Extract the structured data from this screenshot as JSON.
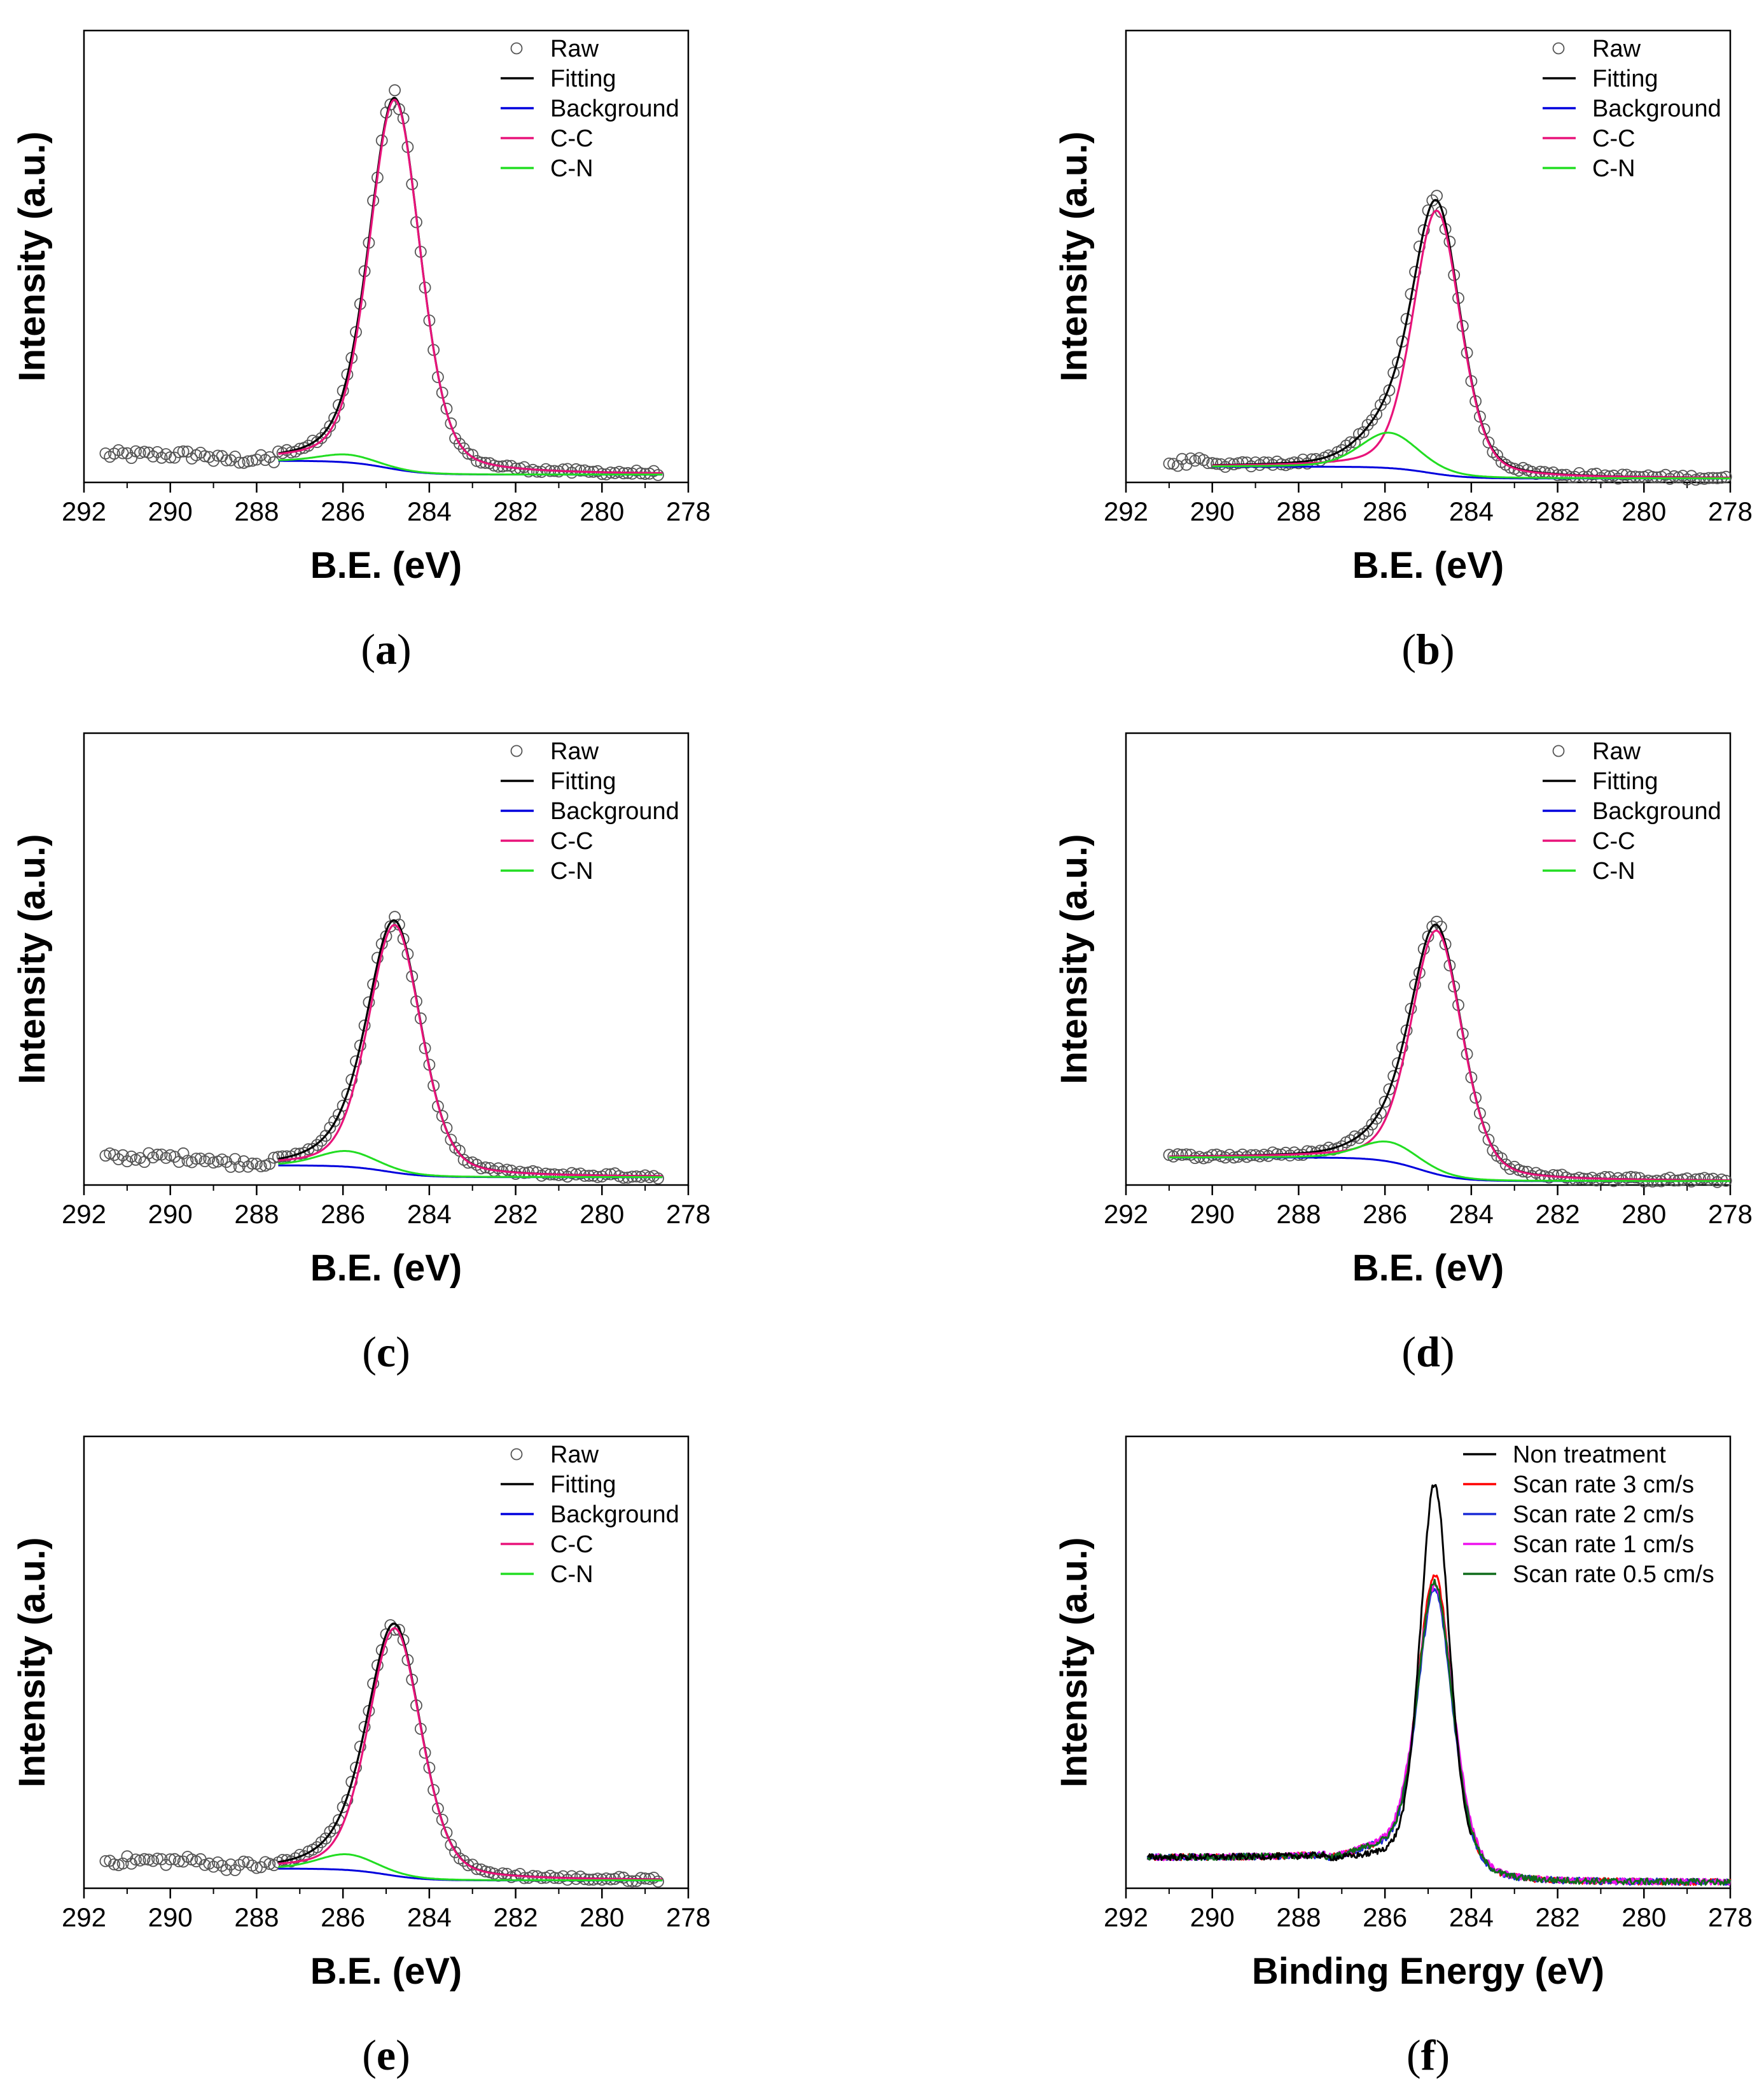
{
  "figure": {
    "panels": [
      {
        "caption": "a"
      },
      {
        "caption": "b"
      },
      {
        "caption": "c"
      },
      {
        "caption": "d"
      },
      {
        "caption": "e"
      },
      {
        "caption": "f"
      }
    ]
  },
  "colors": {
    "raw": "#555555",
    "fitting": "#000000",
    "background": "#0000dd",
    "cc": "#e8137a",
    "cn": "#22dd22",
    "non_treatment": "#000000",
    "scan3": "#ff0000",
    "scan2": "#1a2bd6",
    "scan1": "#ee11ee",
    "scan05": "#0f6b1a"
  },
  "chart_data": [
    {
      "panel": "a",
      "type": "scatter",
      "xlabel": "B.E. (eV)",
      "ylabel": "Intensity (a.u.)",
      "xlim": [
        292,
        278
      ],
      "xticks": [
        "292",
        "290",
        "288",
        "286",
        "284",
        "282",
        "280",
        "278"
      ],
      "ylim": [
        0,
        1.15
      ],
      "legend": [
        "Raw",
        "Fitting",
        "Background",
        "C-C",
        "C-N"
      ],
      "legend_position": "top-right",
      "raw_range": [
        291.5,
        278.6
      ],
      "fit_range": [
        287.5,
        278.6
      ],
      "peaks": {
        "cc": {
          "center": 284.8,
          "height": 0.94,
          "fwhm": 1.4
        },
        "cn": {
          "center": 285.9,
          "height": 0.02,
          "fwhm": 1.5
        }
      },
      "background": {
        "high": 0.055,
        "low": 0.02,
        "step_center": 285.0
      },
      "raw_plateau": 0.07
    },
    {
      "panel": "b",
      "type": "scatter",
      "xlabel": "B.E. (eV)",
      "ylabel": "Intensity (a.u.)",
      "xlim": [
        292,
        278
      ],
      "xticks": [
        "292",
        "290",
        "288",
        "286",
        "284",
        "282",
        "280",
        "278"
      ],
      "ylim": [
        0,
        1.15
      ],
      "legend": [
        "Raw",
        "Fitting",
        "Background",
        "C-C",
        "C-N"
      ],
      "legend_position": "top-right",
      "raw_range": [
        291.0,
        278.0
      ],
      "fit_range": [
        290.0,
        278.0
      ],
      "peaks": {
        "cc": {
          "center": 284.8,
          "height": 0.67,
          "fwhm": 1.3
        },
        "cn": {
          "center": 285.9,
          "height": 0.09,
          "fwhm": 1.6
        }
      },
      "background": {
        "high": 0.04,
        "low": 0.01,
        "step_center": 285.0
      },
      "raw_plateau": 0.05
    },
    {
      "panel": "c",
      "type": "scatter",
      "xlabel": "B.E. (eV)",
      "ylabel": "Intensity (a.u.)",
      "xlim": [
        292,
        278
      ],
      "xticks": [
        "292",
        "290",
        "288",
        "286",
        "284",
        "282",
        "280",
        "278"
      ],
      "ylim": [
        0,
        1.15
      ],
      "legend": [
        "Raw",
        "Fitting",
        "Background",
        "C-C",
        "C-N"
      ],
      "legend_position": "top-right",
      "raw_range": [
        291.5,
        278.6
      ],
      "fit_range": [
        287.5,
        278.6
      ],
      "peaks": {
        "cc": {
          "center": 284.8,
          "height": 0.63,
          "fwhm": 1.45
        },
        "cn": {
          "center": 285.9,
          "height": 0.04,
          "fwhm": 1.6
        }
      },
      "background": {
        "high": 0.05,
        "low": 0.02,
        "step_center": 285.0
      },
      "raw_plateau": 0.07
    },
    {
      "panel": "d",
      "type": "scatter",
      "xlabel": "B.E. (eV)",
      "ylabel": "Intensity (a.u.)",
      "xlim": [
        292,
        278
      ],
      "xticks": [
        "292",
        "290",
        "288",
        "286",
        "284",
        "282",
        "280",
        "278"
      ],
      "ylim": [
        0,
        1.15
      ],
      "legend": [
        "Raw",
        "Fitting",
        "Background",
        "C-C",
        "C-N"
      ],
      "legend_position": "top-right",
      "raw_range": [
        291.0,
        278.0
      ],
      "fit_range": [
        291.0,
        278.0
      ],
      "peaks": {
        "cc": {
          "center": 284.8,
          "height": 0.62,
          "fwhm": 1.4
        },
        "cn": {
          "center": 285.9,
          "height": 0.05,
          "fwhm": 1.6
        }
      },
      "background": {
        "high": 0.07,
        "low": 0.01,
        "step_center": 285.2
      },
      "raw_plateau": 0.08
    },
    {
      "panel": "e",
      "type": "scatter",
      "xlabel": "B.E. (eV)",
      "ylabel": "Intensity (a.u.)",
      "xlim": [
        292,
        278
      ],
      "xticks": [
        "292",
        "290",
        "288",
        "286",
        "284",
        "282",
        "280",
        "278"
      ],
      "ylim": [
        0,
        1.15
      ],
      "legend": [
        "Raw",
        "Fitting",
        "Background",
        "C-C",
        "C-N"
      ],
      "legend_position": "top-right",
      "raw_range": [
        291.5,
        278.6
      ],
      "fit_range": [
        287.5,
        278.6
      ],
      "peaks": {
        "cc": {
          "center": 284.8,
          "height": 0.63,
          "fwhm": 1.45
        },
        "cn": {
          "center": 285.9,
          "height": 0.04,
          "fwhm": 1.6
        }
      },
      "background": {
        "high": 0.05,
        "low": 0.02,
        "step_center": 285.0
      },
      "raw_plateau": 0.07
    },
    {
      "panel": "f",
      "type": "line",
      "xlabel": "Binding Energy (eV)",
      "ylabel": "Intensity (a.u.)",
      "xlim": [
        292,
        278
      ],
      "xticks": [
        "292",
        "290",
        "288",
        "286",
        "284",
        "282",
        "280",
        "278"
      ],
      "ylim": [
        0,
        1.15
      ],
      "legend_position": "top-right",
      "series": [
        {
          "name": "Non treatment",
          "color_key": "non_treatment",
          "peak": 0.96,
          "center": 284.85,
          "fwhm": 0.8,
          "baseline_high": 0.07,
          "range": [
            291.5,
            284.0
          ]
        },
        {
          "name": "Scan rate 3 cm/s",
          "color_key": "scan3",
          "peak": 0.73,
          "center": 284.85,
          "fwhm": 0.95,
          "baseline_high": 0.07,
          "range": [
            291.5,
            278.0
          ]
        },
        {
          "name": "Scan rate 2 cm/s",
          "color_key": "scan2",
          "peak": 0.69,
          "center": 284.85,
          "fwhm": 0.95,
          "baseline_high": 0.07,
          "range": [
            291.5,
            278.0
          ]
        },
        {
          "name": "Scan rate 1 cm/s",
          "color_key": "scan1",
          "peak": 0.7,
          "center": 284.85,
          "fwhm": 1.0,
          "baseline_high": 0.07,
          "range": [
            291.5,
            278.0
          ]
        },
        {
          "name": "Scan rate 0.5 cm/s",
          "color_key": "scan05",
          "peak": 0.71,
          "center": 284.85,
          "fwhm": 0.95,
          "baseline_high": 0.07,
          "range": [
            291.5,
            278.0
          ]
        }
      ]
    }
  ]
}
